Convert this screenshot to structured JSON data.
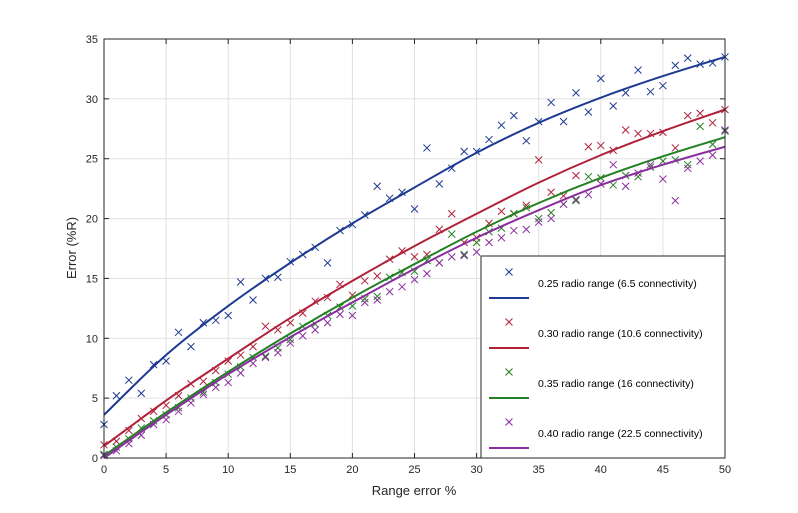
{
  "chart_data": {
    "type": "scatter",
    "title": "",
    "xlabel": "Range error %",
    "ylabel": "Error (%R)",
    "xlim": [
      0,
      50
    ],
    "ylim": [
      0,
      35
    ],
    "xticks": [
      0,
      5,
      10,
      15,
      20,
      25,
      30,
      35,
      40,
      45,
      50
    ],
    "yticks": [
      0,
      5,
      10,
      15,
      20,
      25,
      30,
      35
    ],
    "grid": true,
    "legend_position": "bottom-right",
    "series": [
      {
        "name": "0.25 radio range (6.5 connectivity)",
        "color": "#1f3a93",
        "marker": "x",
        "points": [
          [
            0,
            2.8
          ],
          [
            1,
            5.2
          ],
          [
            2,
            6.5
          ],
          [
            3,
            5.4
          ],
          [
            4,
            7.8
          ],
          [
            5,
            8.1
          ],
          [
            6,
            10.5
          ],
          [
            7,
            9.3
          ],
          [
            8,
            11.3
          ],
          [
            9,
            11.5
          ],
          [
            10,
            11.9
          ],
          [
            11,
            14.7
          ],
          [
            12,
            13.2
          ],
          [
            13,
            15.0
          ],
          [
            14,
            15.1
          ],
          [
            15,
            16.4
          ],
          [
            16,
            17.0
          ],
          [
            17,
            17.6
          ],
          [
            18,
            16.3
          ],
          [
            19,
            19.0
          ],
          [
            20,
            19.5
          ],
          [
            21,
            20.3
          ],
          [
            22,
            22.7
          ],
          [
            23,
            21.7
          ],
          [
            24,
            22.2
          ],
          [
            25,
            20.8
          ],
          [
            26,
            25.9
          ],
          [
            27,
            22.9
          ],
          [
            28,
            24.2
          ],
          [
            29,
            25.6
          ],
          [
            30,
            25.6
          ],
          [
            31,
            26.6
          ],
          [
            32,
            27.8
          ],
          [
            33,
            28.6
          ],
          [
            34,
            26.5
          ],
          [
            35,
            28.1
          ],
          [
            36,
            29.7
          ],
          [
            37,
            28.1
          ],
          [
            38,
            30.5
          ],
          [
            39,
            28.9
          ],
          [
            40,
            31.7
          ],
          [
            41,
            29.4
          ],
          [
            42,
            30.5
          ],
          [
            43,
            32.4
          ],
          [
            44,
            30.6
          ],
          [
            45,
            31.1
          ],
          [
            46,
            32.8
          ],
          [
            47,
            33.4
          ],
          [
            48,
            32.9
          ],
          [
            49,
            33.0
          ],
          [
            50,
            33.5
          ]
        ],
        "fit": [
          [
            0,
            3.6
          ],
          [
            5,
            8.6
          ],
          [
            10,
            12.7
          ],
          [
            15,
            16.3
          ],
          [
            20,
            19.6
          ],
          [
            25,
            22.6
          ],
          [
            30,
            25.5
          ],
          [
            35,
            28.0
          ],
          [
            40,
            30.1
          ],
          [
            45,
            31.9
          ],
          [
            50,
            33.5
          ]
        ]
      },
      {
        "name": "0.30 radio range (10.6 connectivity)",
        "color": "#b0213a",
        "marker": "x",
        "points": [
          [
            0,
            1.1
          ],
          [
            1,
            1.4
          ],
          [
            2,
            2.3
          ],
          [
            3,
            3.3
          ],
          [
            4,
            3.9
          ],
          [
            5,
            4.4
          ],
          [
            6,
            5.2
          ],
          [
            7,
            6.2
          ],
          [
            8,
            6.4
          ],
          [
            9,
            7.3
          ],
          [
            10,
            8.1
          ],
          [
            11,
            8.6
          ],
          [
            12,
            9.3
          ],
          [
            13,
            11.0
          ],
          [
            14,
            10.7
          ],
          [
            15,
            11.3
          ],
          [
            16,
            12.1
          ],
          [
            17,
            13.1
          ],
          [
            18,
            13.4
          ],
          [
            19,
            14.5
          ],
          [
            20,
            13.6
          ],
          [
            21,
            14.8
          ],
          [
            22,
            15.2
          ],
          [
            23,
            16.6
          ],
          [
            24,
            17.3
          ],
          [
            25,
            16.8
          ],
          [
            26,
            17.0
          ],
          [
            27,
            19.1
          ],
          [
            28,
            20.4
          ],
          [
            29,
            18.0
          ],
          [
            30,
            18.4
          ],
          [
            31,
            19.6
          ],
          [
            32,
            20.6
          ],
          [
            33,
            20.4
          ],
          [
            34,
            21.1
          ],
          [
            35,
            24.9
          ],
          [
            36,
            22.2
          ],
          [
            37,
            21.9
          ],
          [
            38,
            23.6
          ],
          [
            39,
            26.0
          ],
          [
            40,
            26.1
          ],
          [
            41,
            25.7
          ],
          [
            42,
            27.4
          ],
          [
            43,
            27.1
          ],
          [
            44,
            27.1
          ],
          [
            45,
            27.2
          ],
          [
            46,
            25.9
          ],
          [
            47,
            28.6
          ],
          [
            48,
            28.8
          ],
          [
            49,
            28.0
          ],
          [
            50,
            29.1
          ]
        ],
        "fit": [
          [
            0,
            1.0
          ],
          [
            5,
            4.8
          ],
          [
            10,
            8.3
          ],
          [
            15,
            11.7
          ],
          [
            20,
            14.8
          ],
          [
            25,
            17.7
          ],
          [
            30,
            20.4
          ],
          [
            35,
            23.0
          ],
          [
            40,
            25.3
          ],
          [
            45,
            27.3
          ],
          [
            50,
            29.1
          ]
        ]
      },
      {
        "name": "0.35 radio range (16 connectivity)",
        "color": "#238023",
        "marker": "x",
        "points": [
          [
            0,
            0.3
          ],
          [
            1,
            0.9
          ],
          [
            2,
            1.6
          ],
          [
            3,
            2.5
          ],
          [
            4,
            3.1
          ],
          [
            5,
            3.6
          ],
          [
            6,
            4.2
          ],
          [
            7,
            5.0
          ],
          [
            8,
            5.5
          ],
          [
            9,
            6.3
          ],
          [
            10,
            7.0
          ],
          [
            11,
            7.6
          ],
          [
            12,
            8.4
          ],
          [
            13,
            8.5
          ],
          [
            14,
            9.2
          ],
          [
            15,
            9.9
          ],
          [
            16,
            11.0
          ],
          [
            17,
            11.2
          ],
          [
            18,
            11.9
          ],
          [
            19,
            12.6
          ],
          [
            20,
            12.7
          ],
          [
            21,
            13.3
          ],
          [
            22,
            13.5
          ],
          [
            23,
            15.1
          ],
          [
            24,
            15.5
          ],
          [
            25,
            15.6
          ],
          [
            26,
            16.5
          ],
          [
            27,
            16.3
          ],
          [
            28,
            18.7
          ],
          [
            29,
            17.0
          ],
          [
            30,
            18.0
          ],
          [
            31,
            18.9
          ],
          [
            32,
            19.2
          ],
          [
            33,
            20.4
          ],
          [
            34,
            20.9
          ],
          [
            35,
            20.0
          ],
          [
            36,
            20.5
          ],
          [
            37,
            21.2
          ],
          [
            38,
            21.5
          ],
          [
            39,
            23.5
          ],
          [
            40,
            23.4
          ],
          [
            41,
            22.8
          ],
          [
            42,
            23.6
          ],
          [
            43,
            23.5
          ],
          [
            44,
            24.3
          ],
          [
            45,
            24.8
          ],
          [
            46,
            24.9
          ],
          [
            47,
            24.5
          ],
          [
            48,
            27.7
          ],
          [
            49,
            26.2
          ],
          [
            50,
            27.3
          ]
        ],
        "fit": [
          [
            0,
            0.2
          ],
          [
            5,
            3.8
          ],
          [
            10,
            7.2
          ],
          [
            15,
            10.4
          ],
          [
            20,
            13.4
          ],
          [
            25,
            16.2
          ],
          [
            30,
            18.9
          ],
          [
            35,
            21.3
          ],
          [
            40,
            23.4
          ],
          [
            45,
            25.2
          ],
          [
            50,
            26.8
          ]
        ]
      },
      {
        "name": "0.40 radio range (22.5 connectivity)",
        "color": "#8a2d9e",
        "marker": "x",
        "points": [
          [
            0,
            0.2
          ],
          [
            1,
            0.6
          ],
          [
            2,
            1.2
          ],
          [
            3,
            1.9
          ],
          [
            4,
            2.8
          ],
          [
            5,
            3.2
          ],
          [
            6,
            3.9
          ],
          [
            7,
            4.6
          ],
          [
            8,
            5.3
          ],
          [
            9,
            5.9
          ],
          [
            10,
            6.3
          ],
          [
            11,
            7.1
          ],
          [
            12,
            7.9
          ],
          [
            13,
            8.4
          ],
          [
            14,
            8.8
          ],
          [
            15,
            9.6
          ],
          [
            16,
            10.2
          ],
          [
            17,
            10.7
          ],
          [
            18,
            11.3
          ],
          [
            19,
            12.0
          ],
          [
            20,
            11.9
          ],
          [
            21,
            13.0
          ],
          [
            22,
            13.2
          ],
          [
            23,
            13.9
          ],
          [
            24,
            14.3
          ],
          [
            25,
            14.9
          ],
          [
            26,
            15.4
          ],
          [
            27,
            16.3
          ],
          [
            28,
            16.8
          ],
          [
            29,
            16.9
          ],
          [
            30,
            17.2
          ],
          [
            31,
            18.0
          ],
          [
            32,
            18.4
          ],
          [
            33,
            19.0
          ],
          [
            34,
            19.1
          ],
          [
            35,
            19.7
          ],
          [
            36,
            20.0
          ],
          [
            37,
            21.2
          ],
          [
            38,
            21.6
          ],
          [
            39,
            22.0
          ],
          [
            40,
            22.9
          ],
          [
            41,
            24.5
          ],
          [
            42,
            22.7
          ],
          [
            43,
            23.8
          ],
          [
            44,
            24.5
          ],
          [
            45,
            23.3
          ],
          [
            46,
            21.5
          ],
          [
            47,
            24.2
          ],
          [
            48,
            24.8
          ],
          [
            49,
            25.3
          ],
          [
            50,
            27.4
          ]
        ],
        "fit": [
          [
            0,
            0.0
          ],
          [
            5,
            3.6
          ],
          [
            10,
            7.0
          ],
          [
            15,
            10.1
          ],
          [
            20,
            13.0
          ],
          [
            25,
            15.8
          ],
          [
            30,
            18.4
          ],
          [
            35,
            20.7
          ],
          [
            40,
            22.8
          ],
          [
            45,
            24.5
          ],
          [
            50,
            26.0
          ]
        ]
      }
    ]
  }
}
